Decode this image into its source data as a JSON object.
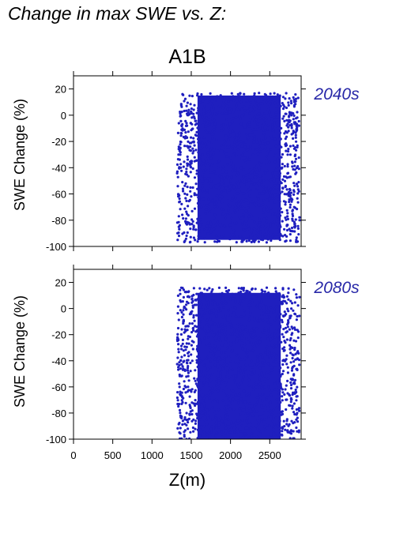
{
  "page": {
    "title": "Change in max SWE vs. Z:"
  },
  "chart_data": {
    "type": "scatter",
    "title": "A1B",
    "xlabel": "Z(m)",
    "ylabel": "SWE Change (%)",
    "xlim": [
      0,
      2900
    ],
    "ylim": [
      -100,
      30
    ],
    "xticks": [
      0,
      500,
      1000,
      1500,
      2000,
      2500
    ],
    "yticks": [
      20,
      0,
      -20,
      -40,
      -60,
      -80,
      -100
    ],
    "marker_color": "#1f1fbf",
    "label_color": "#2828a8",
    "grid": false,
    "panels": [
      {
        "label": "2040s",
        "x_range": [
          1320,
          2880
        ],
        "dense_x_range": [
          1580,
          2640
        ],
        "y_range": [
          -97,
          17
        ],
        "dense_y_range": [
          -95,
          15
        ]
      },
      {
        "label": "2080s",
        "x_range": [
          1320,
          2880
        ],
        "dense_x_range": [
          1580,
          2640
        ],
        "y_range": [
          -100,
          16
        ],
        "dense_y_range": [
          -100,
          12
        ]
      }
    ]
  }
}
